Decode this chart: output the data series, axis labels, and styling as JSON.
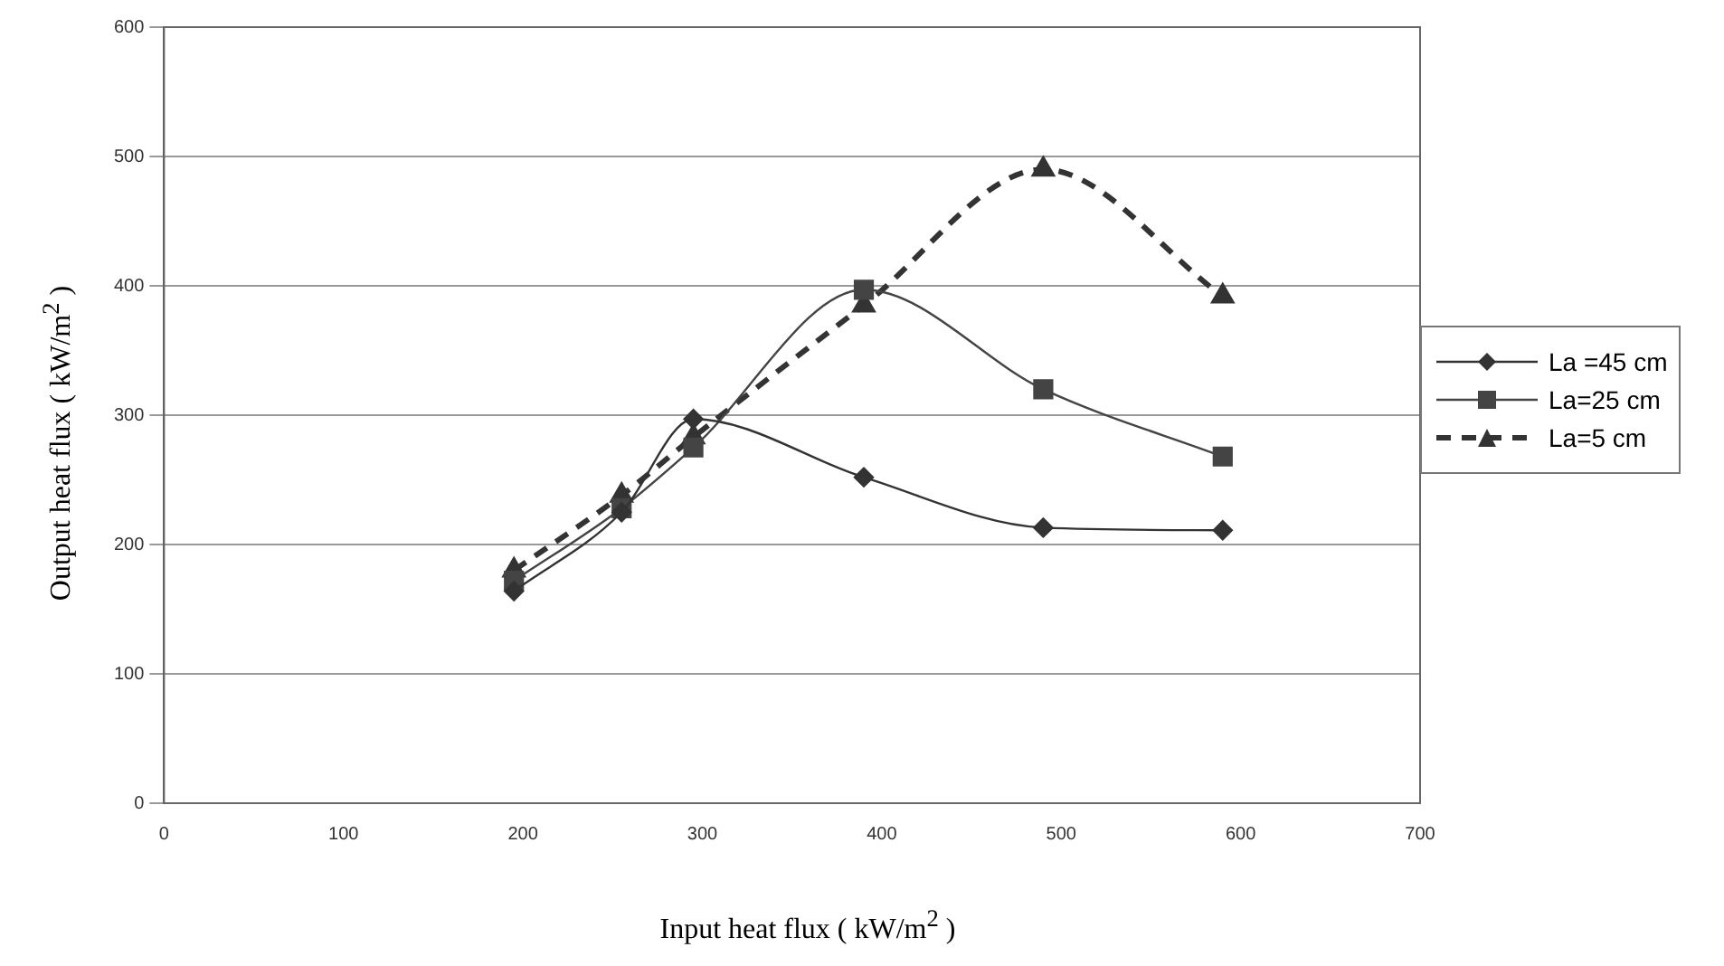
{
  "chart_data": {
    "type": "line",
    "xlabel": "Input heat flux ( kW/m$^{2}$ )",
    "ylabel": "Output heat flux ( kW/m$^{2}$ )",
    "x": [
      195,
      255,
      295,
      390,
      490,
      590
    ],
    "series": [
      {
        "name": "La =45 cm",
        "color": "#333333",
        "values": [
          164,
          225,
          297,
          252,
          213,
          211
        ],
        "marker": "diamond",
        "line_style": "solid"
      },
      {
        "name": "La=25 cm",
        "color": "#444444",
        "values": [
          172,
          228,
          275,
          397,
          320,
          268
        ],
        "marker": "square",
        "line_style": "solid"
      },
      {
        "name": "La=5 cm",
        "color": "#333333",
        "values": [
          180,
          238,
          283,
          385,
          490,
          392
        ],
        "marker": "triangle",
        "line_style": "dashed"
      }
    ],
    "xlim": [
      0,
      700
    ],
    "xticks": [
      0,
      100,
      200,
      300,
      400,
      500,
      600,
      700
    ],
    "ylim": [
      0,
      600
    ],
    "yticks": [
      0,
      100,
      200,
      300,
      400,
      500,
      600
    ],
    "grid": "y",
    "legend": "right"
  }
}
